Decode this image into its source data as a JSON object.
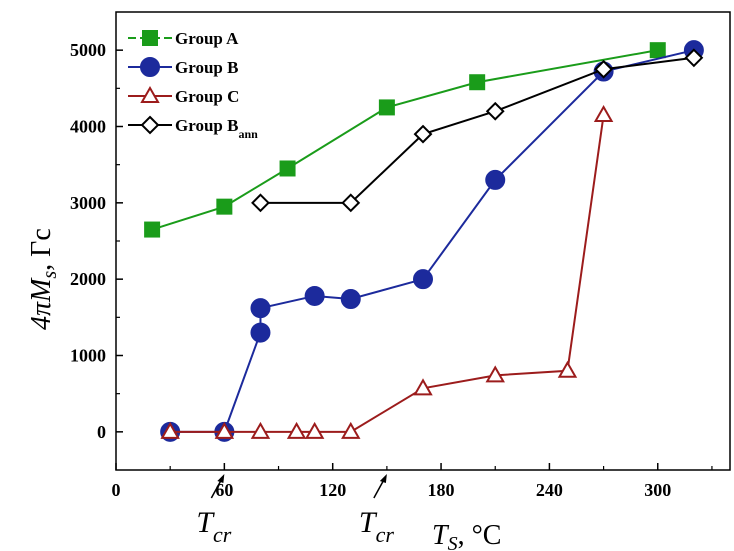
{
  "chart_data": {
    "type": "line",
    "xlabel": "T",
    "xlabel_sub": "S",
    "xlabel_unit": ", °C",
    "ylabel": "4πM",
    "ylabel_sub": "s",
    "ylabel_unit": ", Гс",
    "xlim": [
      0,
      340
    ],
    "ylim": [
      -500,
      5500
    ],
    "xticks": [
      0,
      60,
      120,
      180,
      240,
      300
    ],
    "yticks": [
      0,
      1000,
      2000,
      3000,
      4000,
      5000
    ],
    "grid": false,
    "legend_position": "top-left",
    "annotations": [
      {
        "text": "T",
        "sub": "cr",
        "x": 60
      },
      {
        "text": "T",
        "sub": "cr",
        "x": 150
      }
    ],
    "series": [
      {
        "name": "Group A",
        "name_sub": "",
        "marker": "square",
        "filled": true,
        "color": "#1a9c1a",
        "points": [
          [
            20,
            2650
          ],
          [
            60,
            2950
          ],
          [
            95,
            3450
          ],
          [
            150,
            4250
          ],
          [
            200,
            4580
          ],
          [
            300,
            5000
          ]
        ]
      },
      {
        "name": "Group B",
        "name_sub": "",
        "marker": "circle",
        "filled": true,
        "color": "#1c2a9c",
        "points": [
          [
            30,
            0
          ],
          [
            60,
            0
          ],
          [
            80,
            1300
          ],
          [
            80,
            1620
          ],
          [
            110,
            1780
          ],
          [
            130,
            1740
          ],
          [
            170,
            2000
          ],
          [
            210,
            3300
          ],
          [
            270,
            4720
          ],
          [
            320,
            5000
          ]
        ]
      },
      {
        "name": "Group C",
        "name_sub": "",
        "marker": "triangle",
        "filled": false,
        "color": "#9c1c1c",
        "points": [
          [
            30,
            0
          ],
          [
            60,
            0
          ],
          [
            80,
            0
          ],
          [
            100,
            0
          ],
          [
            110,
            0
          ],
          [
            130,
            0
          ],
          [
            170,
            570
          ],
          [
            210,
            740
          ],
          [
            250,
            800
          ],
          [
            270,
            4150
          ]
        ]
      },
      {
        "name": "Group B",
        "name_sub": "ann",
        "marker": "diamond",
        "filled": false,
        "color": "#000000",
        "points": [
          [
            80,
            3000
          ],
          [
            130,
            3000
          ],
          [
            170,
            3900
          ],
          [
            210,
            4200
          ],
          [
            270,
            4750
          ],
          [
            320,
            4900
          ]
        ]
      }
    ]
  }
}
